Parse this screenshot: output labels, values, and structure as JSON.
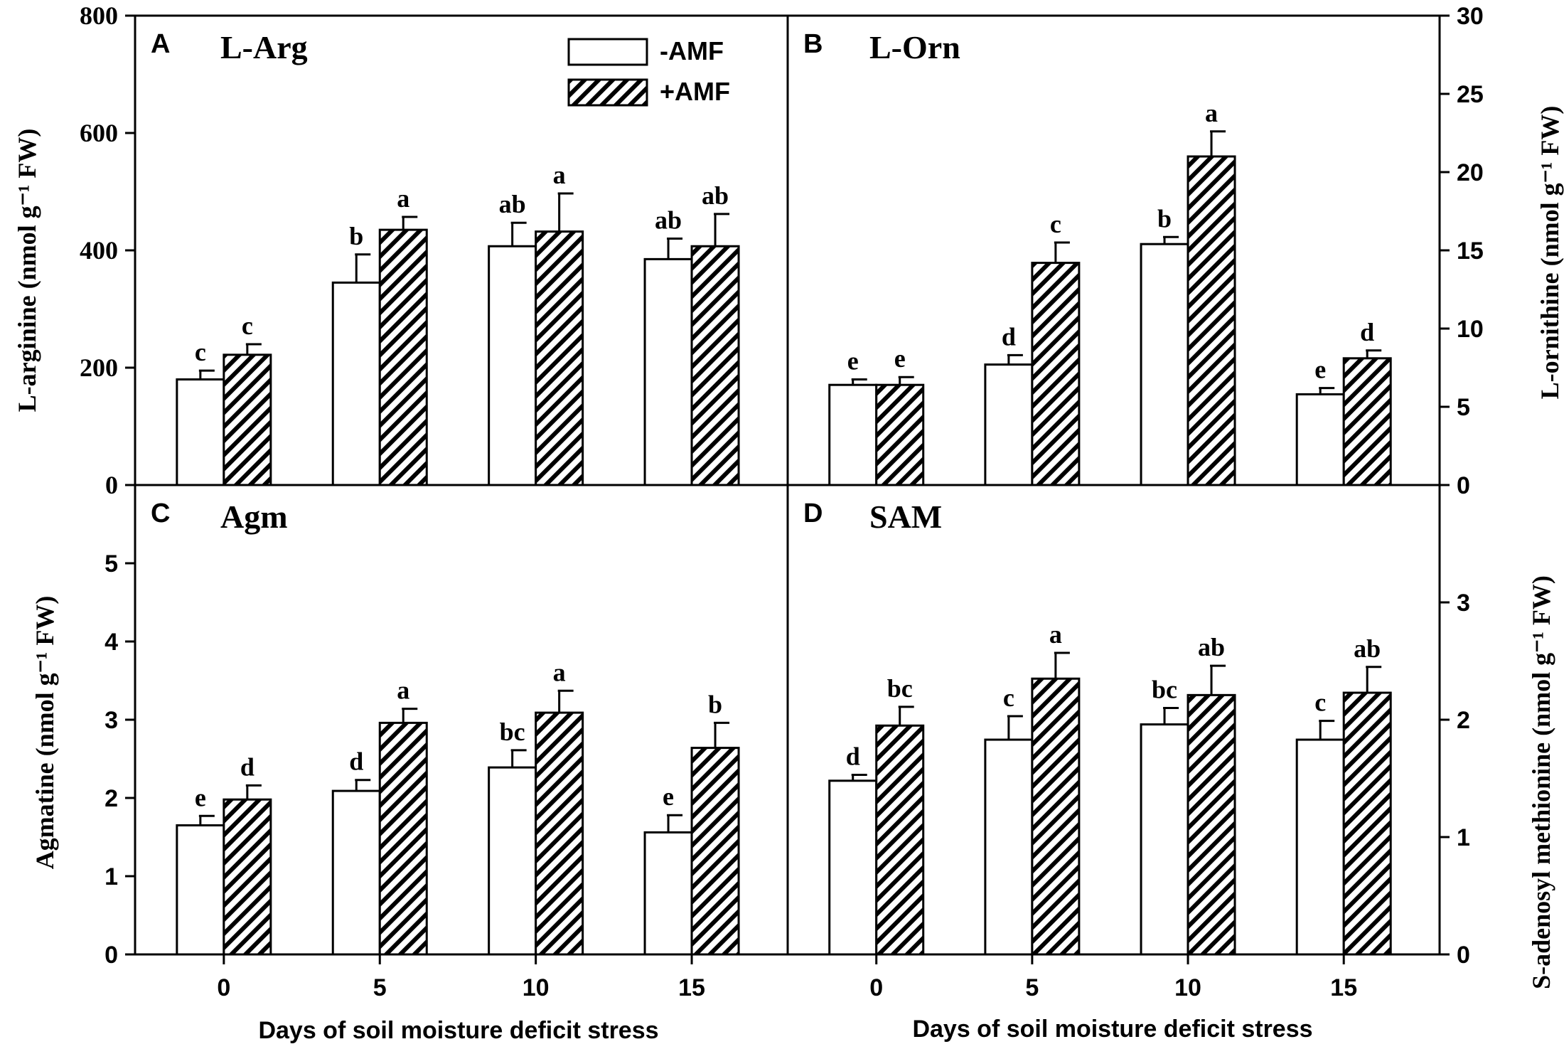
{
  "figure": {
    "x_axis_label": "Days of soil moisture deficit stress",
    "legend": [
      {
        "label": "-AMF",
        "series": "minus"
      },
      {
        "label": "+AMF",
        "series": "plus"
      }
    ],
    "colors": {
      "bar_minus": "#ffffff",
      "bar_plus_hatch": "#000000",
      "axes": "#000000"
    }
  },
  "chart_data": [
    {
      "id": "A",
      "panel_letter": "A",
      "title": "L-Arg",
      "type": "bar",
      "ylabel": "L-arginine (nmol g⁻¹ FW)",
      "xlabel": "",
      "categories": [
        "0",
        "5",
        "10",
        "15"
      ],
      "ylim": [
        0,
        800
      ],
      "yticks": [
        "0",
        "200",
        "400",
        "600",
        "800"
      ],
      "series": [
        {
          "name": "-AMF",
          "values": [
            180,
            345,
            407,
            385
          ],
          "errors": [
            15,
            48,
            40,
            35
          ],
          "labels": [
            "c",
            "b",
            "ab",
            "ab"
          ]
        },
        {
          "name": "+AMF",
          "values": [
            222,
            435,
            432,
            407
          ],
          "errors": [
            18,
            22,
            65,
            55
          ],
          "labels": [
            "c",
            "a",
            "a",
            "ab"
          ]
        }
      ]
    },
    {
      "id": "B",
      "panel_letter": "B",
      "title": "L-Orn",
      "type": "bar",
      "ylabel": "L-ornithine (nmol g⁻¹ FW)",
      "xlabel": "",
      "categories": [
        "0",
        "5",
        "10",
        "15"
      ],
      "ylim": [
        0,
        30
      ],
      "yticks": [
        "0",
        "5",
        "10",
        "15",
        "20",
        "25",
        "30"
      ],
      "series": [
        {
          "name": "-AMF",
          "values": [
            6.4,
            7.7,
            15.4,
            5.8
          ],
          "errors": [
            0.35,
            0.6,
            0.45,
            0.4
          ],
          "labels": [
            "e",
            "d",
            "b",
            "e"
          ]
        },
        {
          "name": "+AMF",
          "values": [
            6.4,
            14.2,
            21.0,
            8.1
          ],
          "errors": [
            0.5,
            1.3,
            1.6,
            0.5
          ],
          "labels": [
            "e",
            "c",
            "a",
            "d"
          ]
        }
      ]
    },
    {
      "id": "C",
      "panel_letter": "C",
      "title": "Agm",
      "type": "bar",
      "ylabel": "Agmatine (nmol g⁻¹ FW)",
      "xlabel": "Days of soil moisture deficit stress",
      "categories": [
        "0",
        "5",
        "10",
        "15"
      ],
      "ylim": [
        0,
        6
      ],
      "yticks": [
        "0",
        "1",
        "2",
        "3",
        "4",
        "5"
      ],
      "series": [
        {
          "name": "-AMF",
          "values": [
            1.65,
            2.09,
            2.39,
            1.56
          ],
          "errors": [
            0.12,
            0.14,
            0.22,
            0.22
          ],
          "labels": [
            "e",
            "d",
            "bc",
            "e"
          ]
        },
        {
          "name": "+AMF",
          "values": [
            1.98,
            2.96,
            3.09,
            2.64
          ],
          "errors": [
            0.18,
            0.18,
            0.28,
            0.32
          ],
          "labels": [
            "d",
            "a",
            "a",
            "b"
          ]
        }
      ]
    },
    {
      "id": "D",
      "panel_letter": "D",
      "title": "SAM",
      "type": "bar",
      "ylabel": "S-adenosyl methionine (nmol g⁻¹ FW)",
      "xlabel": "Days of soil moisture deficit stress",
      "categories": [
        "0",
        "5",
        "10",
        "15"
      ],
      "ylim": [
        0,
        4
      ],
      "yticks": [
        "0",
        "1",
        "2",
        "3"
      ],
      "series": [
        {
          "name": "-AMF",
          "values": [
            1.48,
            1.83,
            1.96,
            1.83
          ],
          "errors": [
            0.05,
            0.2,
            0.14,
            0.16
          ],
          "labels": [
            "d",
            "c",
            "bc",
            "c"
          ]
        },
        {
          "name": "+AMF",
          "values": [
            1.95,
            2.35,
            2.21,
            2.23
          ],
          "errors": [
            0.16,
            0.22,
            0.25,
            0.22
          ],
          "labels": [
            "bc",
            "a",
            "ab",
            "ab"
          ]
        }
      ]
    }
  ]
}
